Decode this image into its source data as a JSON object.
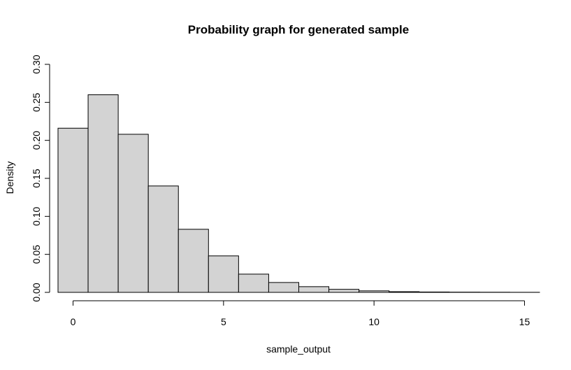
{
  "chart_data": {
    "type": "bar",
    "title": "Probability graph for generated sample",
    "xlabel": "sample_output",
    "ylabel": "Density",
    "xlim": [
      -0.5,
      15.5
    ],
    "ylim": [
      0,
      0.3
    ],
    "x_ticks": [
      0,
      5,
      10,
      15
    ],
    "x_tick_labels": [
      "0",
      "5",
      "10",
      "15"
    ],
    "y_ticks": [
      0,
      0.05,
      0.1,
      0.15,
      0.2,
      0.25,
      0.3
    ],
    "y_tick_labels": [
      "0.00",
      "0.05",
      "0.10",
      "0.15",
      "0.20",
      "0.25",
      "0.30"
    ],
    "grid": false,
    "bins": [
      {
        "left": -0.5,
        "right": 0.5,
        "density": 0.216
      },
      {
        "left": 0.5,
        "right": 1.5,
        "density": 0.26
      },
      {
        "left": 1.5,
        "right": 2.5,
        "density": 0.208
      },
      {
        "left": 2.5,
        "right": 3.5,
        "density": 0.14
      },
      {
        "left": 3.5,
        "right": 4.5,
        "density": 0.083
      },
      {
        "left": 4.5,
        "right": 5.5,
        "density": 0.048
      },
      {
        "left": 5.5,
        "right": 6.5,
        "density": 0.024
      },
      {
        "left": 6.5,
        "right": 7.5,
        "density": 0.013
      },
      {
        "left": 7.5,
        "right": 8.5,
        "density": 0.0075
      },
      {
        "left": 8.5,
        "right": 9.5,
        "density": 0.004
      },
      {
        "left": 9.5,
        "right": 10.5,
        "density": 0.002
      },
      {
        "left": 10.5,
        "right": 11.5,
        "density": 0.0009
      },
      {
        "left": 11.5,
        "right": 12.5,
        "density": 0.0005
      },
      {
        "left": 12.5,
        "right": 13.5,
        "density": 0.0003
      },
      {
        "left": 13.5,
        "right": 14.5,
        "density": 0.0002
      },
      {
        "left": 14.5,
        "right": 15.5,
        "density": 0.0001
      }
    ],
    "colors": {
      "bar_fill": "#d3d3d3",
      "bar_stroke": "#000000"
    }
  }
}
